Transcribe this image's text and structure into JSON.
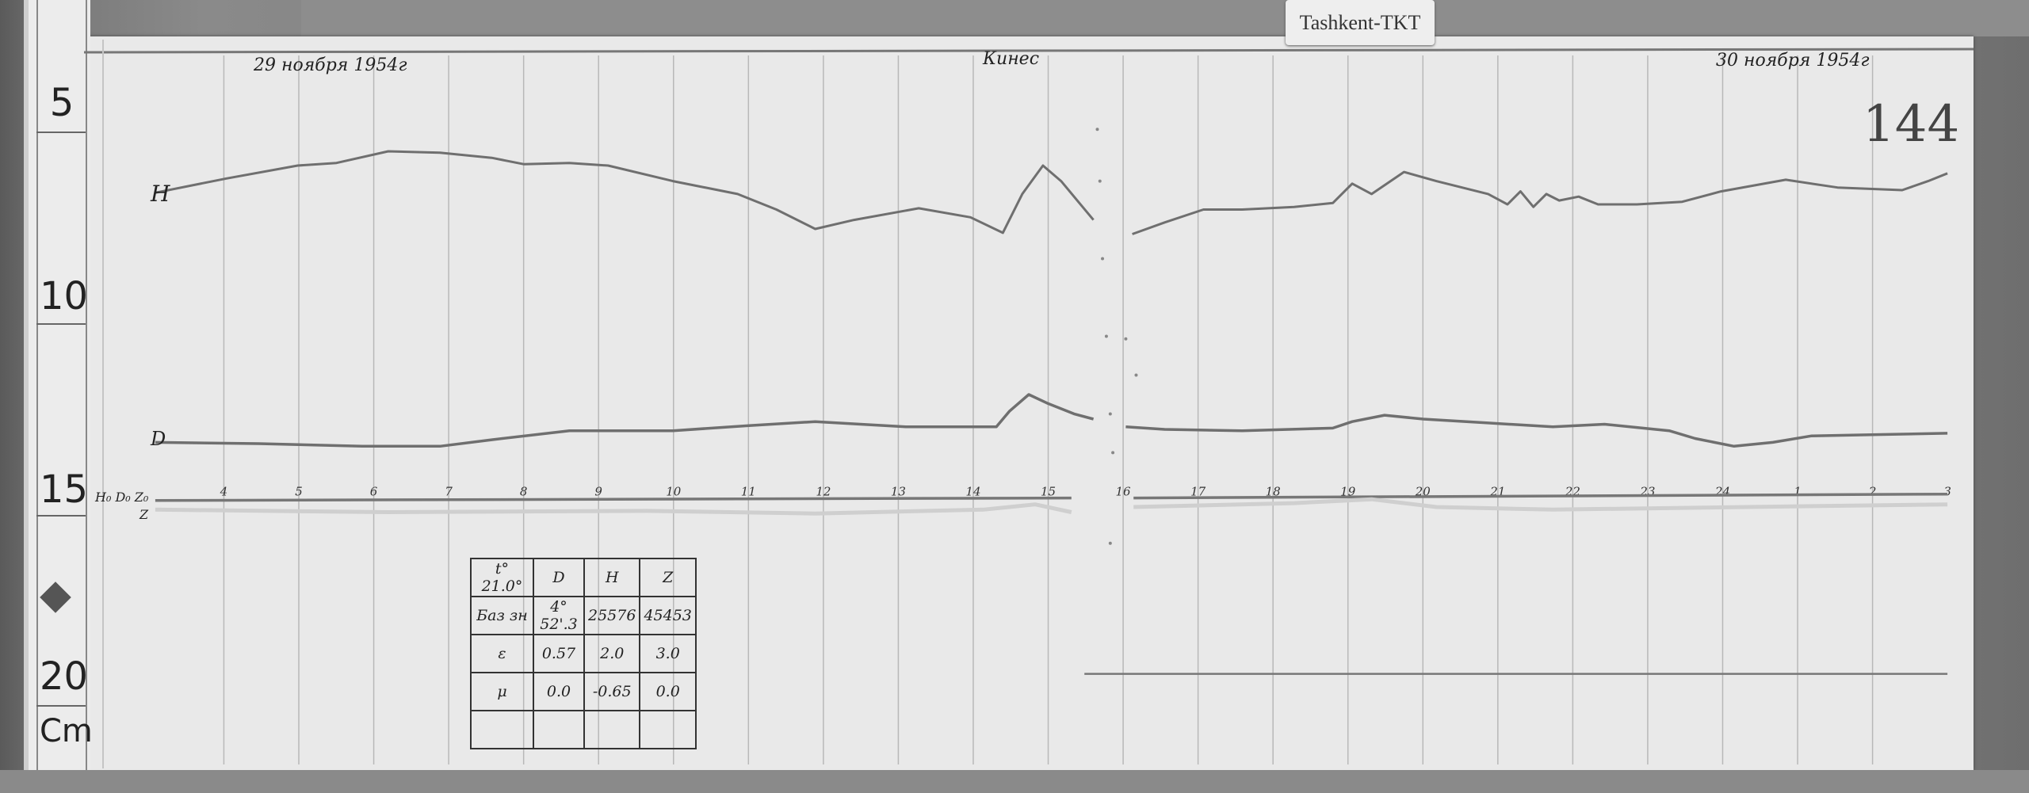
{
  "station_label": "Tashkent-TKT",
  "sheet_number": "144",
  "header": {
    "date_left": "29 ноября 1954г",
    "observer": "Кинес",
    "date_right": "30 ноября 1954г"
  },
  "ruler": {
    "marks": [
      "5",
      "10",
      "15",
      "20"
    ],
    "unit": "Cm"
  },
  "trace_labels": {
    "h": "H",
    "d": "D",
    "baselines": "H₀ D₀ Z₀",
    "z": "Z"
  },
  "hour_ticks": [
    "4",
    "5",
    "6",
    "7",
    "8",
    "9",
    "10",
    "11",
    "12",
    "13",
    "14",
    "15",
    "16",
    "17",
    "18",
    "19",
    "20",
    "21",
    "22",
    "23",
    "24",
    "1",
    "2",
    "3"
  ],
  "scale_table": {
    "header": [
      "t° 21.0°",
      "D",
      "H",
      "Z"
    ],
    "rows": [
      [
        "Баз зн",
        "4° 52'.3",
        "25576",
        "45453"
      ],
      [
        "ε",
        "0.57",
        "2.0",
        "3.0"
      ],
      [
        "μ",
        "0.0",
        "-0.65",
        "0.0"
      ],
      [
        "",
        "",
        "",
        ""
      ]
    ]
  },
  "colors": {
    "paper": "#e9e9e9",
    "trace": "#6f6f6f",
    "ink": "#222222"
  }
}
